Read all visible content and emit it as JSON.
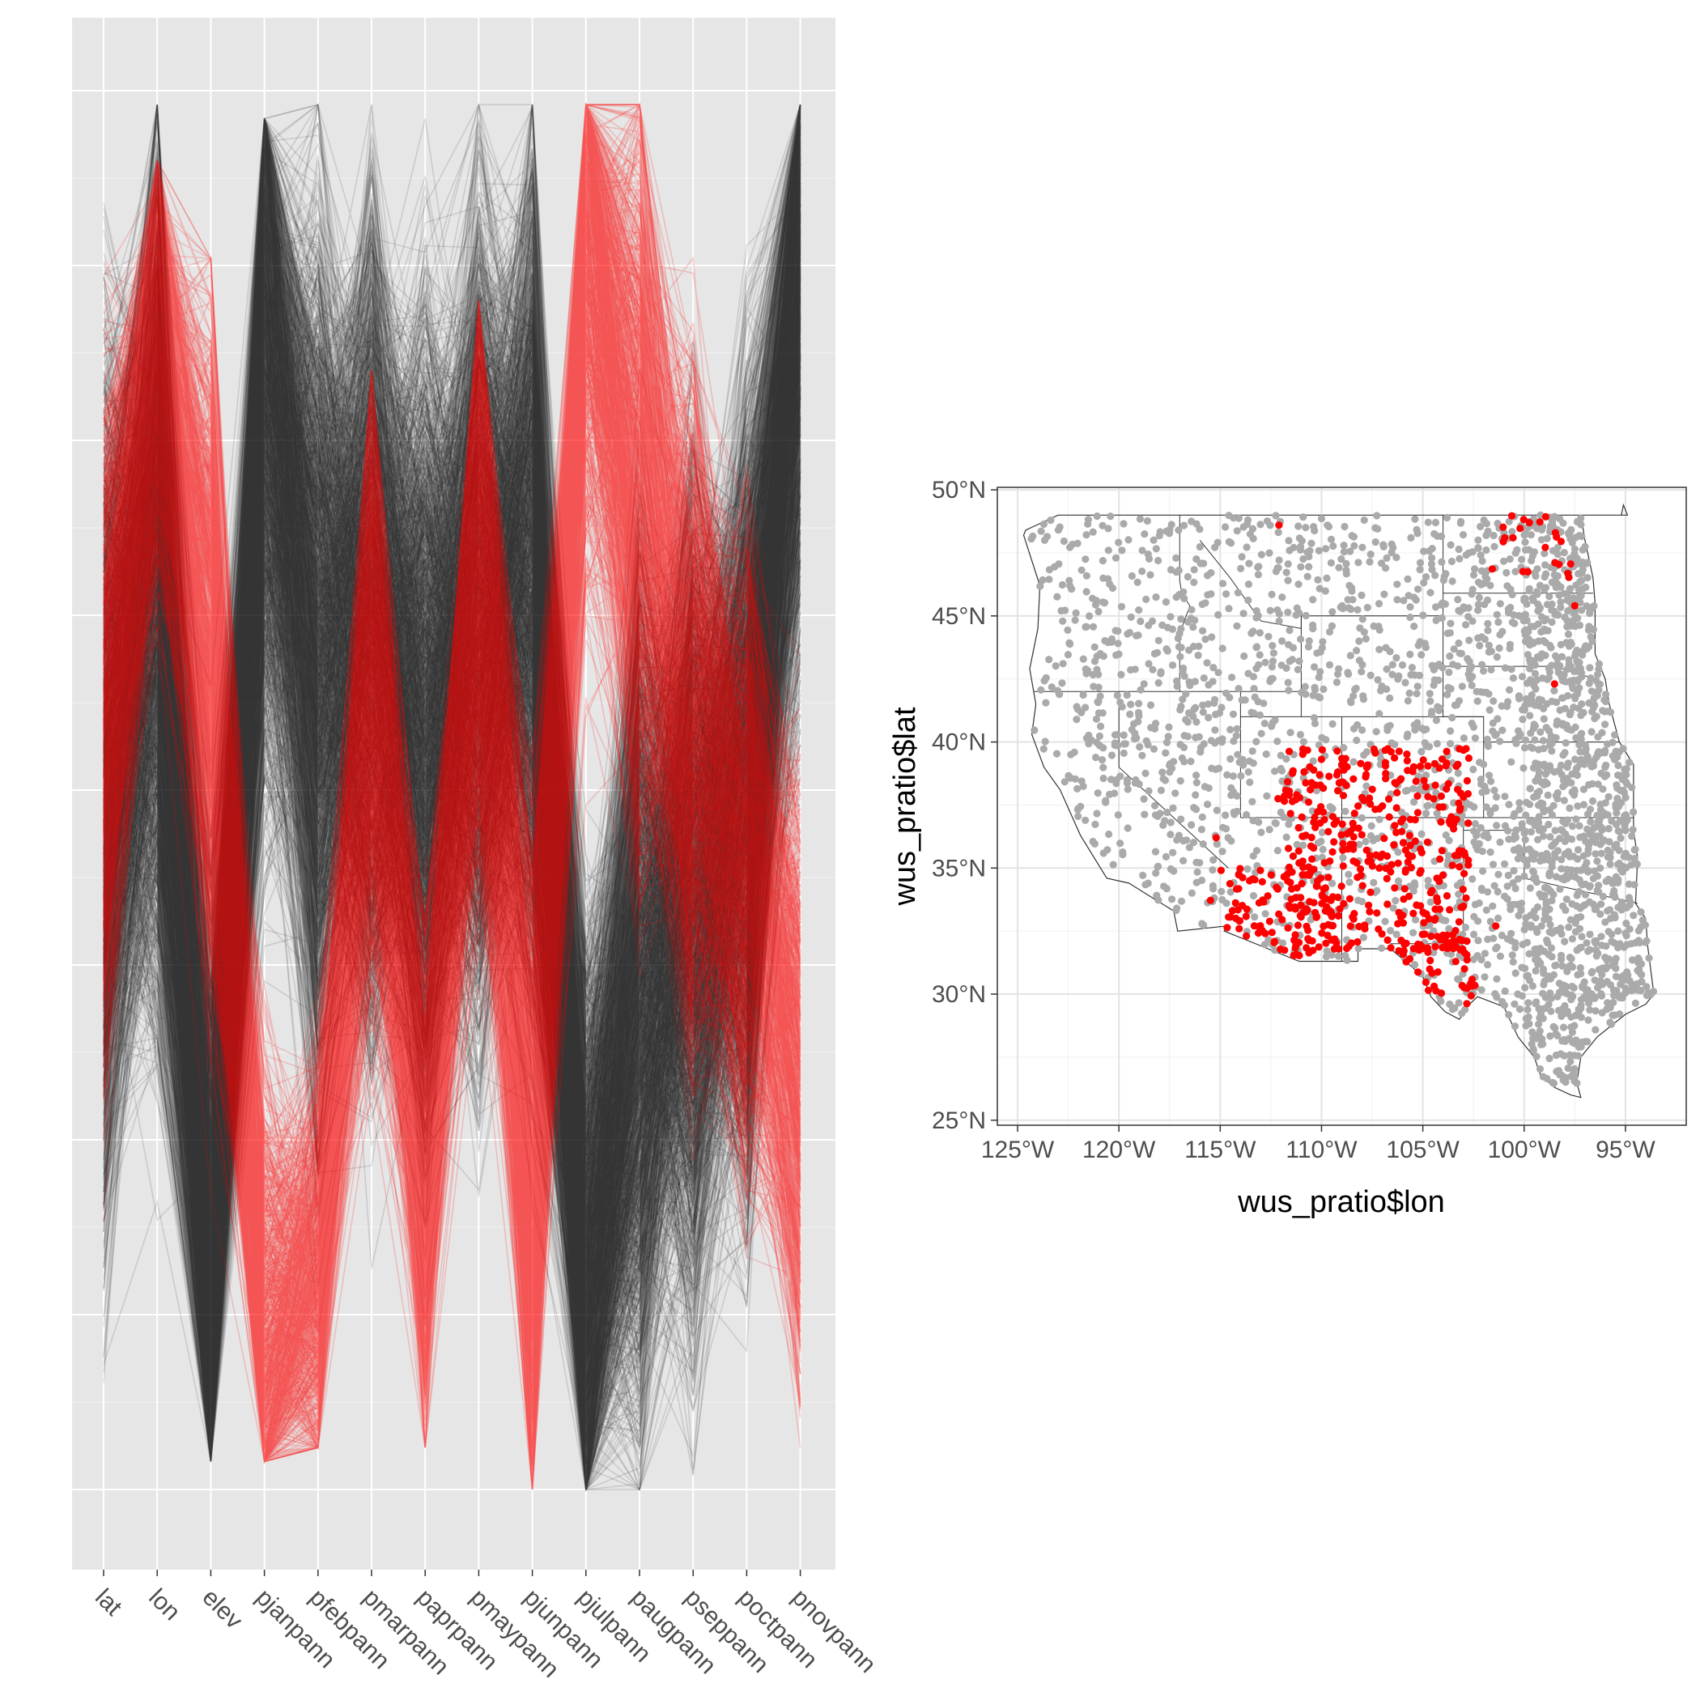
{
  "chart_data": [
    {
      "type": "parallel-coordinates",
      "axes": [
        "lat",
        "lon",
        "elev",
        "pjanpann",
        "pfebpann",
        "pmarpann",
        "paprpann",
        "pmaypann",
        "pjunpann",
        "pjulpann",
        "paugpann",
        "pseppann",
        "poctpann",
        "pnovpann"
      ],
      "y_range": [
        0,
        1
      ],
      "y_breaks": [
        0,
        0.125,
        0.25,
        0.375,
        0.5,
        0.625,
        0.75,
        0.875,
        1
      ],
      "y_tick_labels": "none",
      "grid": true,
      "series": [
        {
          "group": "other",
          "color": "#000000",
          "line_alpha": 0.12,
          "profile": [
            0.5,
            0.65,
            0.12,
            0.8,
            0.6,
            0.62,
            0.55,
            0.62,
            0.65,
            0.15,
            0.35,
            0.42,
            0.5,
            0.88
          ],
          "min": [
            0.01,
            0.0,
            0.02,
            0.01,
            0.01,
            0.02,
            0.01,
            0.03,
            0.0,
            0.0,
            0.0,
            0.01,
            0.03,
            0.02
          ],
          "max": [
            1.0,
            0.99,
            0.99,
            0.98,
            0.99,
            0.99,
            0.98,
            0.99,
            0.99,
            0.78,
            0.99,
            0.98,
            0.96,
            0.99
          ]
        },
        {
          "group": "highlighted",
          "color": "#ff0000",
          "line_alpha": 0.18,
          "profile": [
            0.55,
            0.82,
            0.6,
            0.1,
            0.15,
            0.58,
            0.22,
            0.68,
            0.2,
            0.9,
            0.72,
            0.55,
            0.45,
            0.3
          ],
          "min": [
            0.15,
            0.3,
            0.05,
            0.02,
            0.03,
            0.05,
            0.03,
            0.05,
            0.0,
            0.15,
            0.1,
            0.08,
            0.05,
            0.03
          ],
          "max": [
            1.0,
            0.95,
            0.88,
            0.65,
            0.55,
            0.8,
            0.6,
            0.85,
            0.82,
            0.99,
            0.99,
            0.9,
            0.8,
            0.75
          ]
        }
      ]
    },
    {
      "type": "scatter",
      "xlabel": "wus_pratio$lon",
      "ylabel": "wus_pratio$lat",
      "xlim": [
        -126,
        -92
      ],
      "ylim": [
        24.8,
        50.1
      ],
      "x_ticks": [
        -125,
        -120,
        -115,
        -110,
        -105,
        -100,
        -95
      ],
      "x_tick_labels": [
        "125°W",
        "120°W",
        "115°W",
        "110°W",
        "105°W",
        "100°W",
        "95°W"
      ],
      "y_ticks": [
        25,
        30,
        35,
        40,
        45,
        50
      ],
      "y_tick_labels": [
        "25°N",
        "30°N",
        "35°N",
        "40°N",
        "45°N",
        "50°N"
      ],
      "grid": true,
      "series": [
        {
          "group": "other",
          "color": "#aaaaaa"
        },
        {
          "group": "highlighted",
          "color": "#ff0000",
          "regions": [
            {
              "lon": [
                -111.7,
                -102.7
              ],
              "lat": [
                31.5,
                39.8
              ],
              "count": 360
            },
            {
              "lon": [
                -115.5,
                -109.3
              ],
              "lat": [
                31.4,
                35.0
              ],
              "count": 95
            },
            {
              "lon": [
                -106.8,
                -102.4
              ],
              "lat": [
                29.2,
                32.4
              ],
              "count": 45
            },
            {
              "lon": [
                -112.4,
                -111.0
              ],
              "lat": [
                37.6,
                38.4
              ],
              "count": 7
            },
            {
              "lon": [
                -101.7,
                -97.3
              ],
              "lat": [
                46.5,
                49.0
              ],
              "count": 22
            },
            {
              "points": [
                [
                  -98.5,
                  42.3
                ],
                [
                  -112.1,
                  48.6
                ],
                [
                  -97.5,
                  45.4
                ],
                [
                  -101.4,
                  32.7
                ],
                [
                  -115.2,
                  36.2
                ]
              ]
            }
          ]
        }
      ],
      "state_borders": true
    }
  ]
}
